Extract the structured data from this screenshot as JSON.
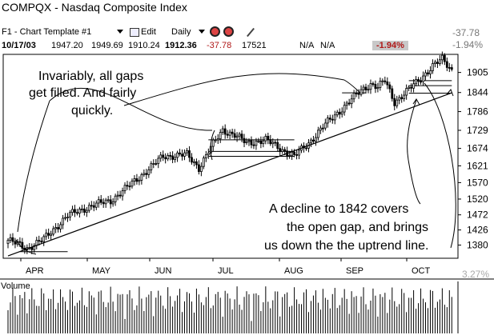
{
  "header": {
    "title": "COMPQX - Nasdaq Composite Index",
    "template_label": "F1 - Chart Template #1",
    "edit_label": "Edit",
    "period_label": "Daily",
    "change_value": "-37.78",
    "change_pct": "-1.94%"
  },
  "quote": {
    "date": "10/17/03",
    "open": "1947.20",
    "high": "1949.69",
    "low": "1910.24",
    "close": "1912.36",
    "change": "-37.78",
    "volume": "17521",
    "na1": "N/A",
    "na2": "N/A",
    "pct": "-1.94%"
  },
  "chart_data": {
    "type": "candlestick",
    "y_ticks": [
      "1905",
      "1844",
      "1786",
      "1729",
      "1674",
      "1621",
      "1570",
      "1520",
      "1472",
      "1426",
      "1380"
    ],
    "ylim": [
      1340,
      1960
    ],
    "months": [
      "APR",
      "MAY",
      "JUN",
      "JUL",
      "AUG",
      "SEP",
      "OCT"
    ],
    "x_pct_label": "3.27%",
    "volume_label": "Volume",
    "annotations": [
      "Invariably, all gaps",
      "get filled.  And fairly",
      "quickly.",
      "A decline to 1842 covers",
      "the open gap, and brings",
      "us down the the uptrend line."
    ],
    "price_anchors": [
      [
        0,
        1395
      ],
      [
        8,
        1370
      ],
      [
        15,
        1398
      ],
      [
        25,
        1470
      ],
      [
        35,
        1500
      ],
      [
        43,
        1515
      ],
      [
        50,
        1556
      ],
      [
        58,
        1605
      ],
      [
        65,
        1650
      ],
      [
        75,
        1655
      ],
      [
        80,
        1615
      ],
      [
        84,
        1665
      ],
      [
        90,
        1730
      ],
      [
        95,
        1715
      ],
      [
        100,
        1690
      ],
      [
        108,
        1700
      ],
      [
        115,
        1670
      ],
      [
        120,
        1650
      ],
      [
        126,
        1690
      ],
      [
        132,
        1740
      ],
      [
        140,
        1795
      ],
      [
        148,
        1850
      ],
      [
        152,
        1870
      ],
      [
        155,
        1860
      ],
      [
        158,
        1880
      ],
      [
        162,
        1815
      ],
      [
        166,
        1840
      ],
      [
        172,
        1880
      ],
      [
        178,
        1925
      ],
      [
        182,
        1945
      ],
      [
        186,
        1912
      ]
    ],
    "uptrend_line": [
      [
        0,
        1347
      ],
      [
        186,
        1843
      ]
    ],
    "gaps": [
      {
        "from": 5,
        "to": 25,
        "level": 1360
      },
      {
        "from": 84,
        "to": 120,
        "level": 1700
      },
      {
        "from": 84,
        "to": 120,
        "level": 1665
      },
      {
        "from": 84,
        "to": 120,
        "level": 1650
      },
      {
        "from": 140,
        "to": 150,
        "level": 1843
      },
      {
        "from": 168,
        "to": 186,
        "level": 1880
      },
      {
        "from": 168,
        "to": 186,
        "level": 1865
      },
      {
        "from": 168,
        "to": 186,
        "level": 1842
      }
    ]
  }
}
